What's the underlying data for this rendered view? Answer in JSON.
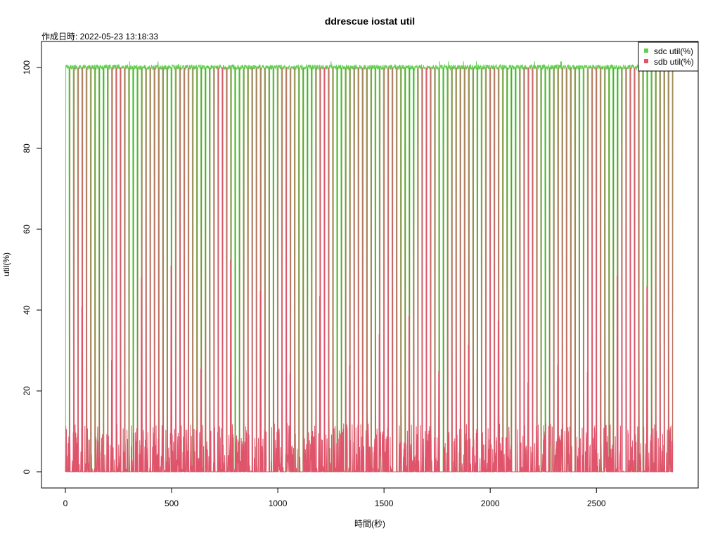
{
  "chart_data": {
    "type": "line",
    "title": "ddrescue iostat util",
    "subtitle": "作成日時: 2022-05-23 13:18:33",
    "xlabel": "時間(秒)",
    "ylabel": "util(%)",
    "xlim": [
      0,
      2860
    ],
    "ylim": [
      0,
      100
    ],
    "x_ticks": [
      0,
      500,
      1000,
      1500,
      2000,
      2500
    ],
    "y_ticks": [
      0,
      20,
      40,
      60,
      80,
      100
    ],
    "grid": false,
    "legend_position": "top-right",
    "sample_interval_sec": 1,
    "series": [
      {
        "name": "sdc util(%)",
        "color": "#61D04F",
        "pattern": "Periodic cycles of ~20 s: near 100 for ~15 s, then drops to 0 for ~3 s. Occasional brief spikes to ~101–102.",
        "approx_cycle_period_sec": 20,
        "plateau_value": 100,
        "drop_value": 0
      },
      {
        "name": "sdb util(%)",
        "color": "#DF536B",
        "pattern": "Mostly low values (0–30) with periodic short spikes up to 100, aligned with the sdc drops.",
        "approx_cycle_period_sec": 20,
        "peak_value": 100,
        "baseline_range": [
          0,
          30
        ]
      }
    ]
  }
}
